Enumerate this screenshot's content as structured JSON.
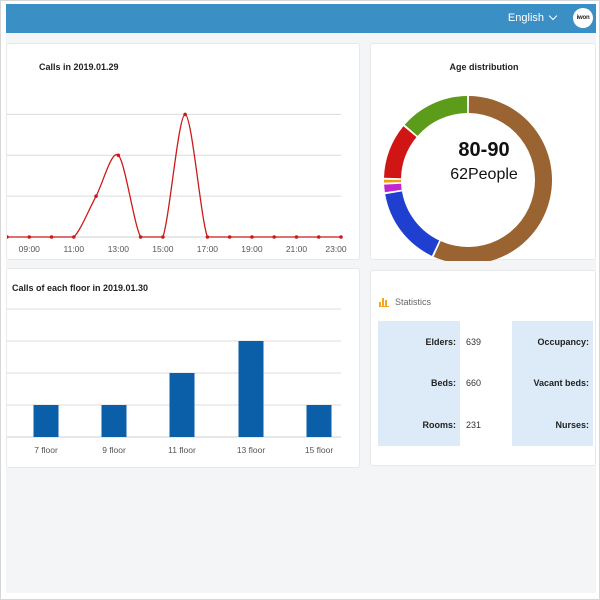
{
  "header": {
    "language": "English",
    "avatar_text": "iwon",
    "bar_color": "#3a8fc5"
  },
  "calls_card": {
    "title": "Calls in 2019.01.29"
  },
  "age_card": {
    "title": "Age distribution",
    "center_value": "80-90",
    "center_label": "62People"
  },
  "floor_card": {
    "title": "Calls of each floor in 2019.01.30"
  },
  "stats_card": {
    "title": "Statistics",
    "icon": "bar-chart-icon",
    "rows": [
      {
        "label": "Elders:",
        "value": "639",
        "label2": "Occupancy:"
      },
      {
        "label": "Beds:",
        "value": "660",
        "label2": "Vacant beds:"
      },
      {
        "label": "Rooms:",
        "value": "231",
        "label2": "Nurses:"
      }
    ]
  },
  "chart_data": [
    {
      "type": "line",
      "title": "Calls in 2019.01.29",
      "x_tick_labels": [
        "09:00",
        "11:00",
        "13:00",
        "15:00",
        "17:00",
        "19:00",
        "21:00",
        "23:00"
      ],
      "x": [
        "08:00",
        "09:00",
        "10:00",
        "11:00",
        "12:00",
        "13:00",
        "14:00",
        "15:00",
        "16:00",
        "17:00",
        "18:00",
        "19:00",
        "20:00",
        "21:00",
        "22:00",
        "23:00"
      ],
      "values": [
        0,
        0,
        0,
        0,
        1,
        2,
        0,
        0,
        3,
        0,
        0,
        0,
        0,
        0,
        0,
        0
      ],
      "ylim": [
        0,
        3.5
      ],
      "grid": true,
      "color": "#cc1a1a"
    },
    {
      "type": "pie",
      "title": "Age distribution",
      "slices": [
        {
          "label": "80-90",
          "value": 62,
          "color": "#9a6332"
        },
        {
          "label": "",
          "value": 17,
          "color": "#1e3fcf"
        },
        {
          "label": "",
          "value": 2,
          "color": "#c026d3"
        },
        {
          "label": "",
          "value": 1,
          "color": "#f59e0b"
        },
        {
          "label": "",
          "value": 12,
          "color": "#d01515"
        },
        {
          "label": "",
          "value": 15,
          "color": "#5d9b1a"
        }
      ]
    },
    {
      "type": "bar",
      "title": "Calls of each floor in 2019.01.30",
      "categories": [
        "7 floor",
        "9 floor",
        "11 floor",
        "13 floor",
        "15 floor"
      ],
      "values": [
        1,
        1,
        2,
        3,
        1
      ],
      "ylim": [
        0,
        4
      ],
      "grid": true,
      "color": "#0b5ea8"
    }
  ]
}
